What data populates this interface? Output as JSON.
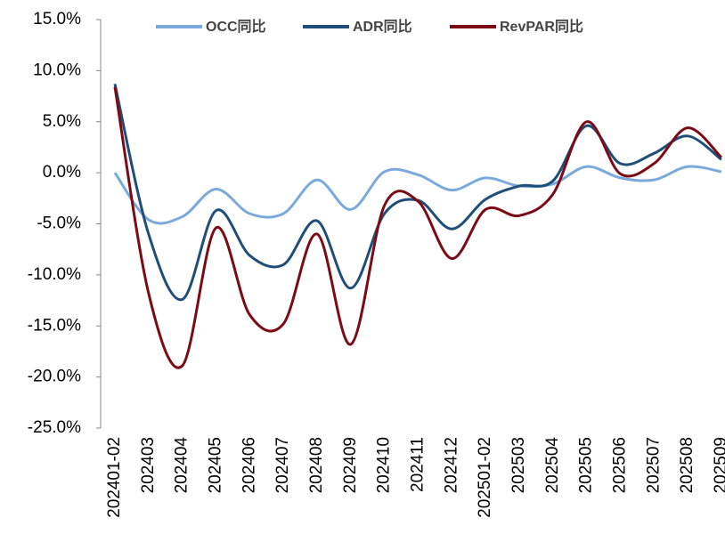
{
  "chart_data": {
    "type": "line",
    "categories": [
      "202401-02",
      "202403",
      "202404",
      "202405",
      "202406",
      "202407",
      "202408",
      "202409",
      "202410",
      "202411",
      "202412",
      "202501-02",
      "202503",
      "202504",
      "202505",
      "202506",
      "202507",
      "202508",
      "202509"
    ],
    "series": [
      {
        "name": "OCC同比",
        "color": "#7aaadc",
        "values": [
          0,
          -4.6,
          -4.3,
          -1.6,
          -4.0,
          -4.0,
          -0.7,
          -3.6,
          0.1,
          -0.2,
          -1.7,
          -0.5,
          -1.3,
          -1.1,
          0.6,
          -0.5,
          -0.7,
          0.6,
          0.1
        ]
      },
      {
        "name": "ADR同比",
        "color": "#1f4e79",
        "values": [
          8.7,
          -6.0,
          -12.4,
          -3.7,
          -8.1,
          -9.0,
          -4.7,
          -11.3,
          -4.0,
          -2.7,
          -5.5,
          -2.6,
          -1.3,
          -0.8,
          4.6,
          0.9,
          1.9,
          3.6,
          1.3
        ]
      },
      {
        "name": "RevPAR同比",
        "color": "#7b0b14",
        "values": [
          8.4,
          -11.8,
          -18.9,
          -5.4,
          -13.9,
          -14.8,
          -6.0,
          -16.8,
          -3.2,
          -2.8,
          -8.4,
          -3.6,
          -4.2,
          -2.1,
          5.0,
          -0.1,
          0.9,
          4.4,
          1.5
        ]
      }
    ],
    "ylim": [
      -25,
      15
    ],
    "yticks": [
      {
        "value": -25,
        "label": "-25.0%"
      },
      {
        "value": -20,
        "label": "-20.0%"
      },
      {
        "value": -15,
        "label": "-15.0%"
      },
      {
        "value": -10,
        "label": "-10.0%"
      },
      {
        "value": -5,
        "label": "-5.0%"
      },
      {
        "value": 0,
        "label": "0.0%"
      },
      {
        "value": 5,
        "label": "5.0%"
      },
      {
        "value": 10,
        "label": "10.0%"
      },
      {
        "value": 15,
        "label": "15.0%"
      }
    ],
    "grid": false,
    "legend": "top"
  }
}
